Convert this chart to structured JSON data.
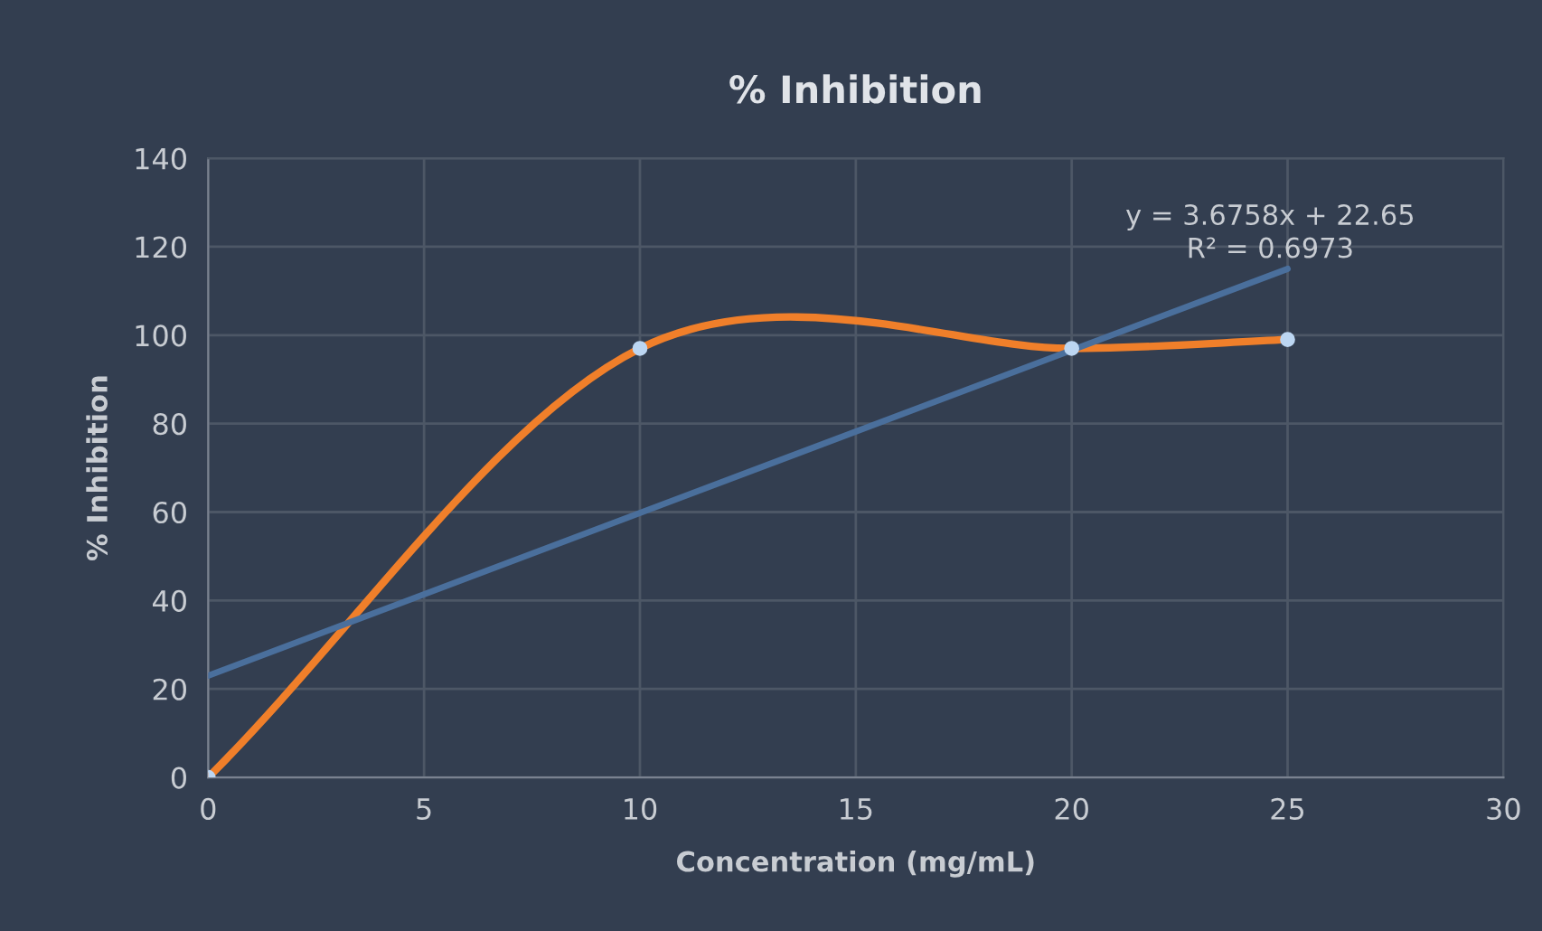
{
  "chart_data": {
    "type": "line",
    "title": "% Inhibition",
    "xlabel": "Concentration (mg/mL)",
    "ylabel": "% Inhibition",
    "series": [
      {
        "color": "#f07f2a",
        "x": [
          0,
          10,
          20,
          25
        ],
        "values": [
          0,
          97,
          97,
          99
        ],
        "marker": "circle"
      },
      {
        "color": "#4a6f9c",
        "x": [
          0,
          25
        ],
        "values": [
          23,
          115
        ],
        "marker": "none"
      }
    ],
    "annotations": [
      "y = 3.6758x + 22.65\nR² = 0.6973"
    ],
    "xlim": [
      0,
      30
    ],
    "xticks": [
      0,
      5,
      10,
      15,
      20,
      25,
      30
    ],
    "ylim": [
      0,
      140
    ],
    "yticks": [
      0,
      20,
      40,
      60,
      80,
      100,
      120,
      140
    ],
    "grid": true,
    "legend": false
  }
}
